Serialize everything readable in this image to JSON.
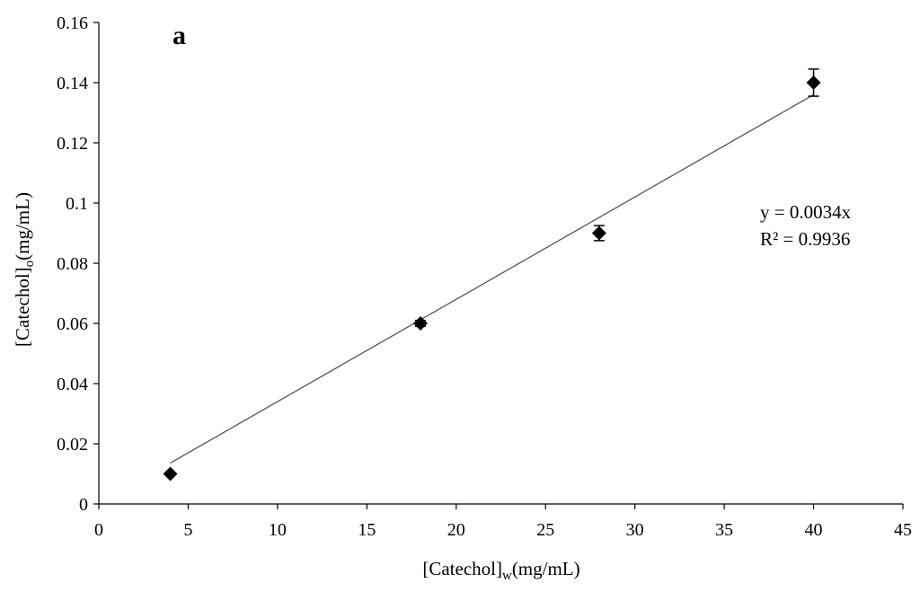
{
  "chart_data": {
    "type": "scatter",
    "panel_label": "a",
    "xlabel": {
      "main": "[Catechol]",
      "sub": "w",
      "unit": "(mg/mL)"
    },
    "ylabel": {
      "main": "[Catechol]",
      "sub": "o",
      "unit": "(mg/mL)"
    },
    "xlim": [
      0,
      45
    ],
    "ylim": [
      0,
      0.16
    ],
    "xticks": [
      "0",
      "5",
      "10",
      "15",
      "20",
      "25",
      "30",
      "35",
      "40",
      "45"
    ],
    "yticks": [
      "0",
      "0.02",
      "0.04",
      "0.06",
      "0.08",
      "0.1",
      "0.12",
      "0.14",
      "0.16"
    ],
    "grid": false,
    "series": [
      {
        "marker": "diamond",
        "color": "#000000",
        "x": [
          4,
          18,
          28,
          40
        ],
        "y": [
          0.01,
          0.06,
          0.09,
          0.14
        ],
        "error": [
          0.0,
          0.001,
          0.0025,
          0.0045
        ]
      }
    ],
    "trendline": {
      "slope": 0.0034,
      "x_range": [
        4,
        40
      ],
      "color": "#555555"
    },
    "annotations": {
      "equation": "y = 0.0034x",
      "r_squared": "R² = 0.9936"
    }
  }
}
